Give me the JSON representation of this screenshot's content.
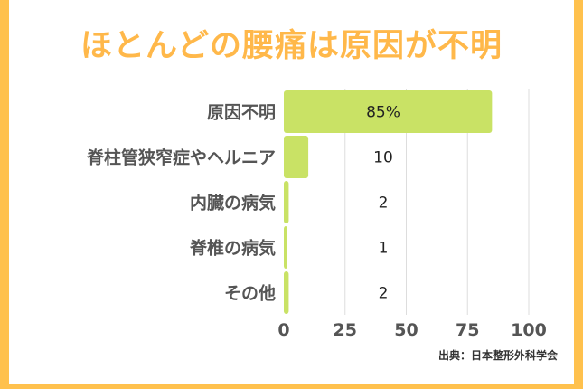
{
  "title": "ほとんどの腰痛は原因が不明",
  "source": "出典：日本整形外科学会",
  "colors": {
    "bar": "#c9e265",
    "accent": "#ffc14d",
    "title": "#ffb84a",
    "grid": "#dddddd"
  },
  "chart_data": {
    "type": "bar",
    "orientation": "horizontal",
    "categories": [
      "原因不明",
      "脊柱管狭窄症やヘルニア",
      "内臓の病気",
      "脊椎の病気",
      "その他"
    ],
    "values": [
      85,
      10,
      2,
      1,
      2
    ],
    "value_labels": [
      "85%",
      "10",
      "2",
      "1",
      "2"
    ],
    "xlim": [
      0,
      100
    ],
    "xticks": [
      0,
      25,
      50,
      75,
      100
    ],
    "grid": true
  }
}
